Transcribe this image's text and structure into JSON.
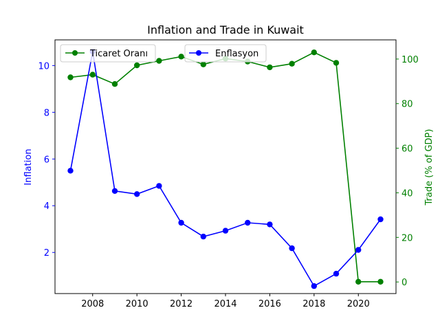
{
  "chart_data": {
    "type": "line",
    "title": "Inflation and Trade in Kuwait",
    "xlabel": "",
    "x": [
      2007,
      2008,
      2009,
      2010,
      2011,
      2012,
      2013,
      2014,
      2015,
      2016,
      2017,
      2018,
      2019,
      2020,
      2021
    ],
    "xlim": [
      2006.3,
      2021.7
    ],
    "x_ticks": [
      2008,
      2010,
      2012,
      2014,
      2016,
      2018,
      2020
    ],
    "grid": false,
    "axes": {
      "left": {
        "label": "Inflation",
        "color": "#0000ff",
        "ylim": [
          0.24,
          11.1
        ],
        "ticks": [
          2,
          4,
          6,
          8,
          10
        ]
      },
      "right": {
        "label": "Trade (% of GDP)",
        "color": "#008000",
        "ylim": [
          -5.2,
          108.6
        ],
        "ticks": [
          0,
          20,
          40,
          60,
          80,
          100
        ]
      }
    },
    "series": [
      {
        "name": "Enflasyon",
        "axis": "left",
        "color": "#0000ff",
        "marker": "circle",
        "values": [
          5.5,
          10.6,
          4.63,
          4.5,
          4.85,
          3.27,
          2.68,
          2.93,
          3.27,
          3.2,
          2.18,
          0.56,
          1.09,
          2.11,
          3.42
        ],
        "legend_position": "upper center"
      },
      {
        "name": "Ticaret Oranı",
        "axis": "right",
        "color": "#008000",
        "marker": "circle",
        "values": [
          91.8,
          93.0,
          88.8,
          97.2,
          99.2,
          101.1,
          97.6,
          100.2,
          98.9,
          96.3,
          97.9,
          103.0,
          98.3,
          0.1,
          0.1
        ],
        "legend_position": "upper left"
      }
    ]
  }
}
